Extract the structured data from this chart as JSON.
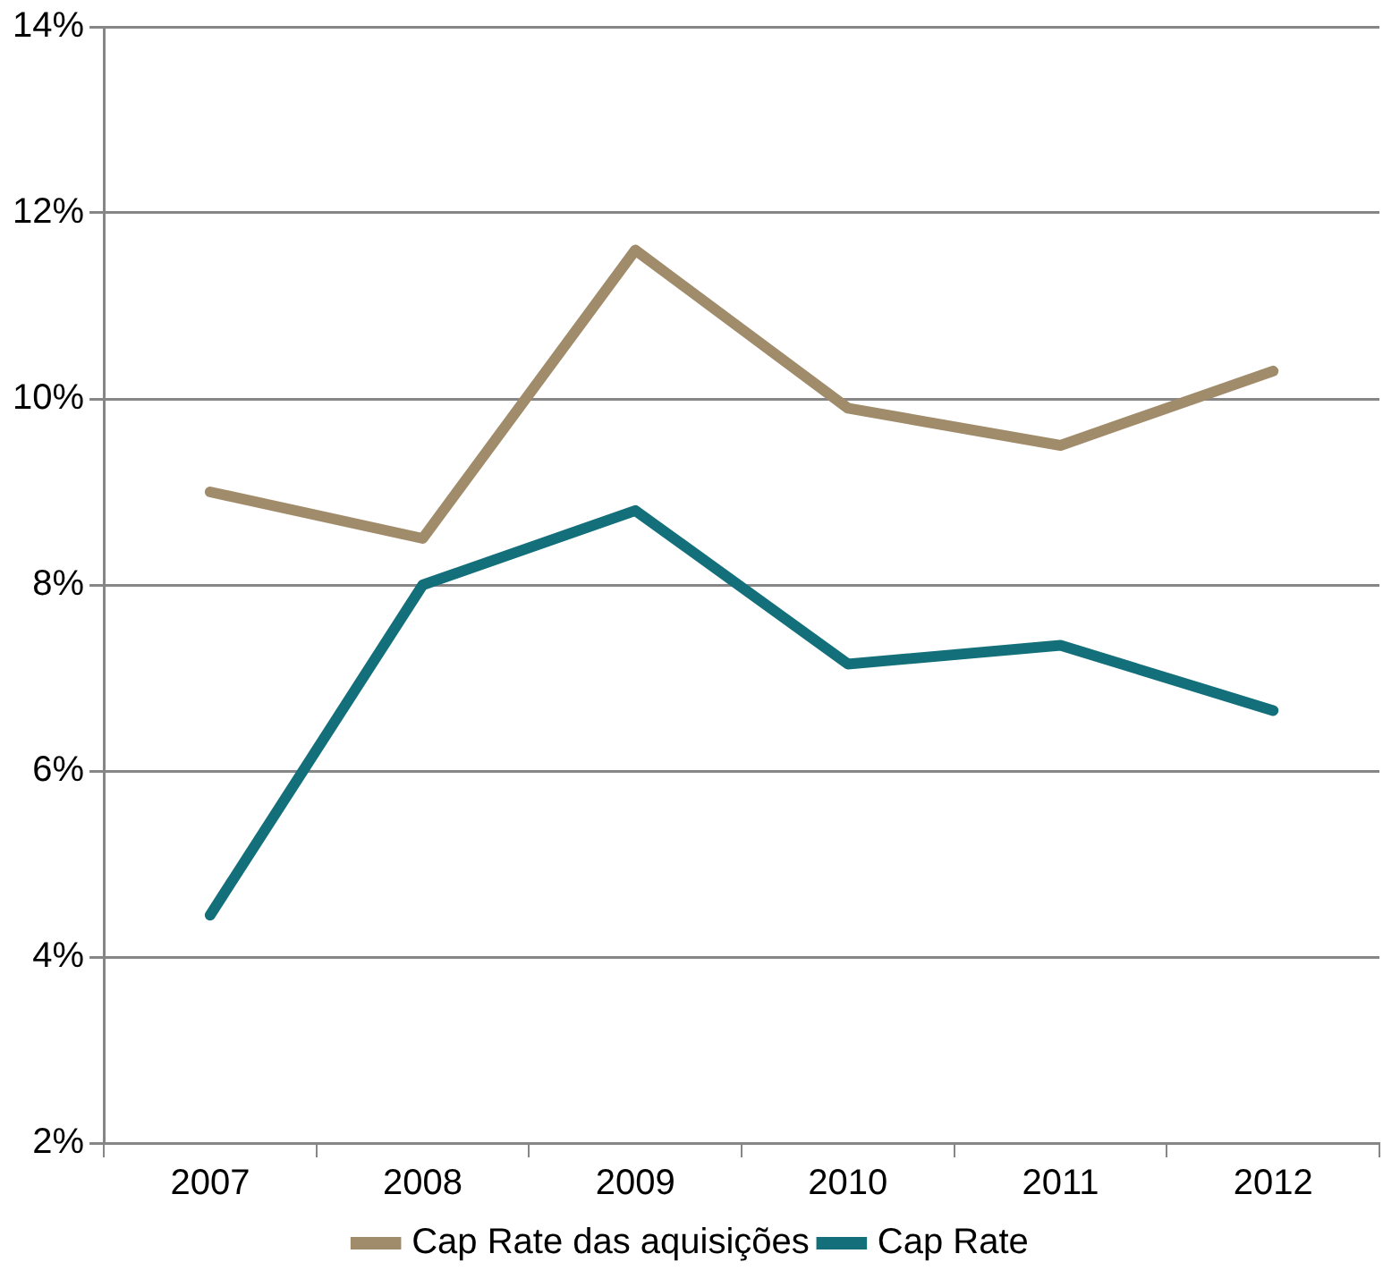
{
  "chart_data": {
    "type": "line",
    "categories": [
      "2007",
      "2008",
      "2009",
      "2010",
      "2011",
      "2012"
    ],
    "series": [
      {
        "name": "Cap Rate das aquisições",
        "color": "#a08b6a",
        "values": [
          9.0,
          8.5,
          11.6,
          9.9,
          9.5,
          10.3
        ]
      },
      {
        "name": "Cap Rate",
        "color": "#13707b",
        "values": [
          4.45,
          8.0,
          8.8,
          7.15,
          7.35,
          6.65
        ]
      }
    ],
    "ylim": [
      2,
      14
    ],
    "yticks": [
      {
        "value": 2,
        "label": "2%"
      },
      {
        "value": 4,
        "label": "4%"
      },
      {
        "value": 6,
        "label": "6%"
      },
      {
        "value": 8,
        "label": "8%"
      },
      {
        "value": 10,
        "label": "10%"
      },
      {
        "value": 12,
        "label": "12%"
      },
      {
        "value": 14,
        "label": "14%"
      }
    ],
    "grid": "y",
    "legend": "bottom",
    "marker": "none",
    "line_style": "solid"
  }
}
